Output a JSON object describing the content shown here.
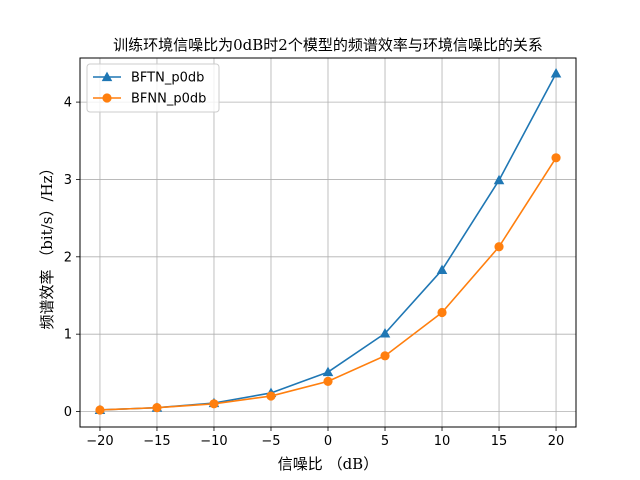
{
  "chart_data": {
    "type": "line",
    "title": "训练环境信噪比为0dB时2个模型的频谱效率与环境信噪比的关系",
    "xlabel": "信噪比 （dB）",
    "ylabel": "频谱效率 （bit/s）/Hz）",
    "x": [
      -20,
      -15,
      -10,
      -5,
      0,
      5,
      10,
      15,
      20
    ],
    "xticks": [
      "−20",
      "−15",
      "−10",
      "−5",
      "0",
      "5",
      "10",
      "15",
      "20"
    ],
    "yticks": [
      "0",
      "1",
      "2",
      "3",
      "4"
    ],
    "xlim": [
      -21.75,
      21.75
    ],
    "ylim": [
      -0.2,
      4.57
    ],
    "grid": true,
    "legend_position": "top-left",
    "series": [
      {
        "name": "BFTN_p0db",
        "color": "#1f77b4",
        "marker": "triangle",
        "values": [
          0.02,
          0.05,
          0.11,
          0.24,
          0.51,
          1.01,
          1.83,
          2.99,
          4.37
        ]
      },
      {
        "name": "BFNN_p0db",
        "color": "#ff7f0e",
        "marker": "circle",
        "values": [
          0.02,
          0.05,
          0.1,
          0.2,
          0.39,
          0.72,
          1.28,
          2.13,
          3.28
        ]
      }
    ]
  }
}
